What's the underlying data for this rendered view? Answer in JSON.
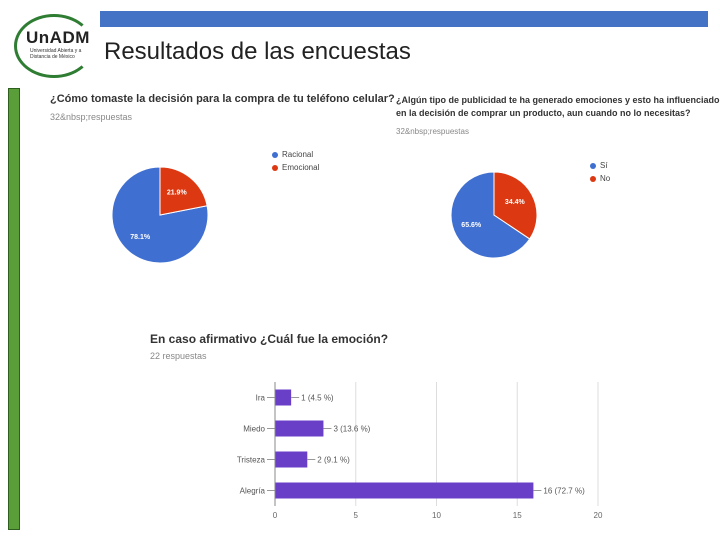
{
  "header": {
    "logo_text": "UnADM",
    "logo_subtitle": "Universidad Abierta y a Distancia de México",
    "title": "Resultados de las encuestas"
  },
  "colors": {
    "blue": "#3f6fd0",
    "red": "#dc3912",
    "purple": "#6a3fc8",
    "accent_bar": "#4472c4",
    "green": "#5a9e3a"
  },
  "chart_data": [
    {
      "type": "pie",
      "title": "¿Cómo tomaste la decisión para la compra de tu teléfono celular?",
      "subtitle": "32&nbsp;respuestas",
      "labels": [
        "Racional",
        "Emocional"
      ],
      "values": [
        78.1,
        21.9
      ],
      "value_labels": [
        "78.1%",
        "21.9%"
      ],
      "legend": "right"
    },
    {
      "type": "pie",
      "title_line1": "¿Algún tipo de publicidad te ha generado emociones y esto ha influenciado",
      "title_line2": "en la decisión de comprar un producto, aun cuando no lo necesitas?",
      "subtitle": "32&nbsp;respuestas",
      "labels": [
        "Sí",
        "No"
      ],
      "values": [
        65.6,
        34.4
      ],
      "value_labels": [
        "65.6%",
        "34.4%"
      ],
      "legend": "right"
    },
    {
      "type": "bar",
      "orientation": "horizontal",
      "title": "En caso afirmativo ¿Cuál fue la emoción?",
      "subtitle": "22 respuestas",
      "categories": [
        "Ira",
        "Miedo",
        "Tristeza",
        "Alegría"
      ],
      "values": [
        1,
        3,
        2,
        16
      ],
      "value_labels": [
        "1 (4.5 %)",
        "3 (13.6 %)",
        "2 (9.1 %)",
        "16 (72.7 %)"
      ],
      "xlim": [
        0,
        20
      ],
      "xticks": [
        "0",
        "5",
        "10",
        "15",
        "20"
      ]
    }
  ]
}
